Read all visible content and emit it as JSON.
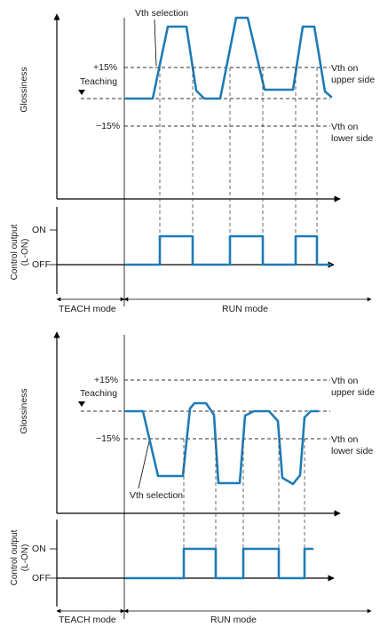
{
  "colors": {
    "signal": "#1f7bb6",
    "axis": "#000000",
    "guide": "#333333"
  },
  "diagrams": [
    {
      "y_label": "Glossiness",
      "upper_pct": "+15%",
      "teaching": "Teaching",
      "lower_pct": "−15%",
      "vth_upper_1": "Vth on",
      "vth_upper_2": "upper side",
      "vth_lower_1": "Vth on",
      "vth_lower_2": "lower side",
      "vth_selection": "Vth selection",
      "output_label_1": "Control output",
      "output_label_2": "(L-ON)",
      "on": "ON",
      "off": "OFF",
      "teach_mode": "TEACH mode",
      "run_mode": "RUN mode"
    },
    {
      "y_label": "Glossiness",
      "upper_pct": "+15%",
      "teaching": "Teaching",
      "lower_pct": "−15%",
      "vth_upper_1": "Vth on",
      "vth_upper_2": "upper side",
      "vth_lower_1": "Vth on",
      "vth_lower_2": "lower side",
      "vth_selection": "Vth selection",
      "output_label_1": "Control output",
      "output_label_2": "(L-ON)",
      "on": "ON",
      "off": "OFF",
      "teach_mode": "TEACH mode",
      "run_mode": "RUN mode"
    }
  ]
}
